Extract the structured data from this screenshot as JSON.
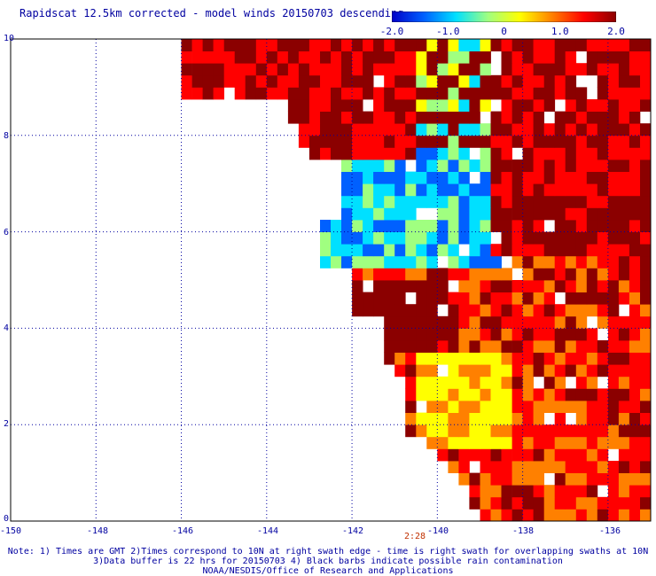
{
  "title": "Rapidscat 12.5km corrected - model winds 20150703 descending",
  "colorbar": {
    "ticks": [
      "-2.0",
      "-1.0",
      "0",
      "1.0",
      "2.0"
    ],
    "tick_values": [
      -2,
      -1,
      0,
      1,
      2
    ],
    "range": [
      -2,
      2
    ],
    "colors": [
      "#0000c8",
      "#0060ff",
      "#00e0ff",
      "#a0ff80",
      "#ffff00",
      "#ff8000",
      "#ff0000",
      "#8b0000"
    ]
  },
  "y_ticks": [
    "10",
    "8",
    "6",
    "4",
    "2",
    "0"
  ],
  "x_ticks": [
    "-150",
    "-148",
    "-146",
    "-144",
    "-142",
    "-140",
    "-138",
    "-136"
  ],
  "time_label": "2:28",
  "notes": [
    "Note: 1) Times are GMT 2)Times correspond to 10N at right swath edge - time is right swath for overlapping swaths at 10N",
    "3)Data buffer is 22 hrs for 20150703 4) Black barbs indicate possible rain contamination",
    "NOAA/NESDIS/Office of Research and Applications"
  ],
  "chart_data": {
    "type": "heatmap",
    "title": "Rapidscat 12.5km corrected - model winds 20150703 descending",
    "x_range": [
      -150,
      -135
    ],
    "y_range": [
      0,
      10
    ],
    "value_range": [
      -2,
      2
    ],
    "x_ticks": [
      -150,
      -148,
      -146,
      -144,
      -142,
      -140,
      -138,
      -136
    ],
    "y_ticks": [
      0,
      2,
      4,
      6,
      8,
      10
    ],
    "grid": true,
    "regions": [
      {
        "name": "NW dark red",
        "approx_value": 2.0,
        "lon": [
          -145.6,
          -140
        ],
        "lat": [
          7.5,
          10
        ]
      },
      {
        "name": "blue/cyan band",
        "approx_value": -1.5,
        "lon": [
          -143,
          -138
        ],
        "lat": [
          5.3,
          7.8
        ]
      },
      {
        "name": "NE dark red",
        "approx_value": 2.0,
        "lon": [
          -139,
          -135
        ],
        "lat": [
          5.5,
          10
        ]
      },
      {
        "name": "central orange",
        "approx_value": 1.2,
        "lon": [
          -142,
          -135
        ],
        "lat": [
          0,
          5.5
        ]
      },
      {
        "name": "south green/yellow",
        "approx_value": 0.3,
        "lon": [
          -140.5,
          -138
        ],
        "lat": [
          1.5,
          3.5
        ]
      }
    ]
  }
}
